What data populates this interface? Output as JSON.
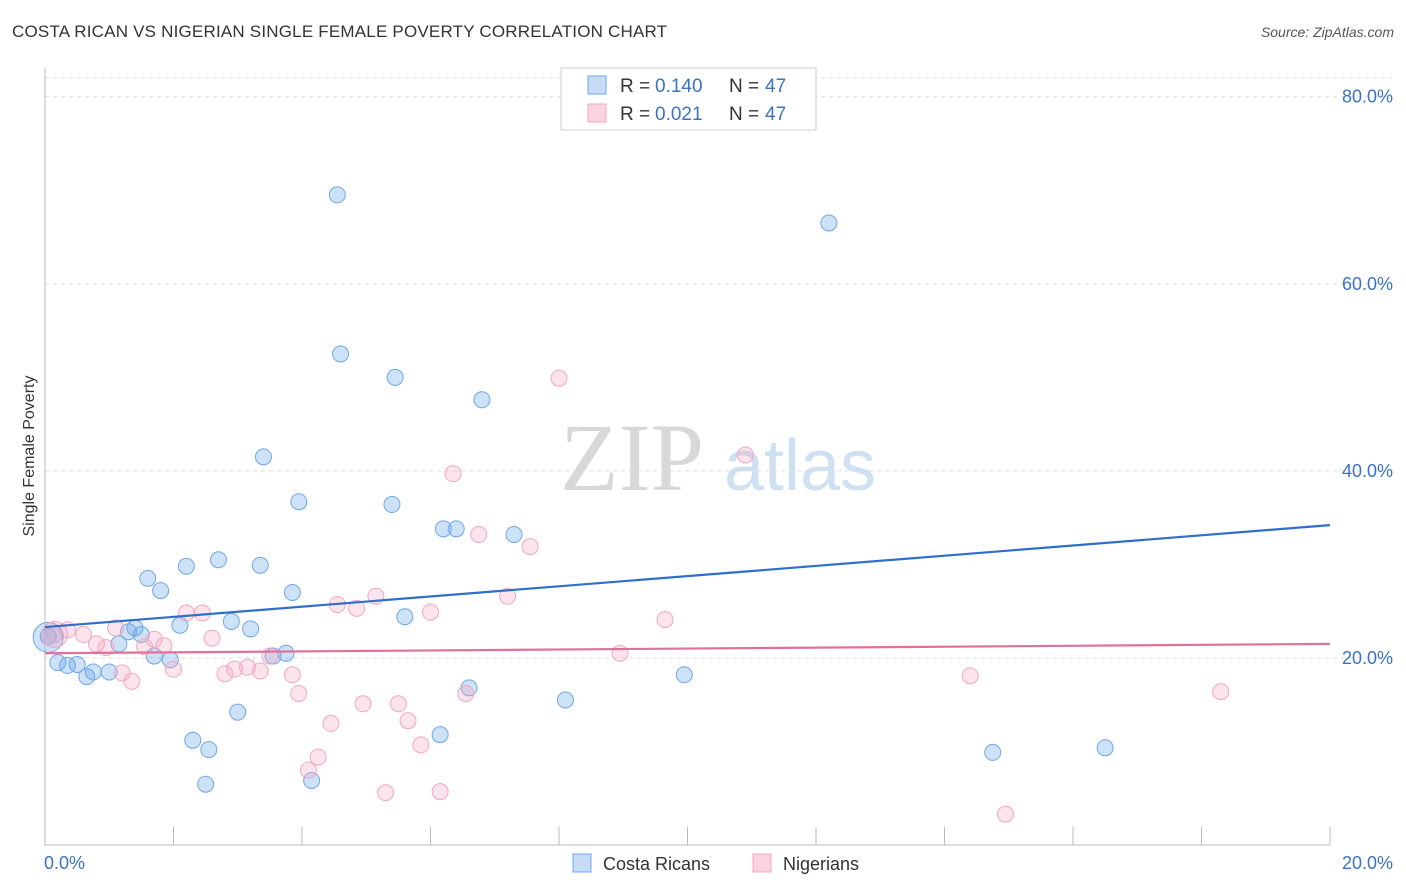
{
  "header": {
    "title": "COSTA RICAN VS NIGERIAN SINGLE FEMALE POVERTY CORRELATION CHART",
    "source": "Source: ZipAtlas.com"
  },
  "colors": {
    "blue": "#6fa8e8",
    "blue_line": "#2e6fcc",
    "pink": "#f4a6c0",
    "pink_line": "#e0719a",
    "tick_label": "#3a73c4",
    "grid": "#dddddd"
  },
  "watermark": {
    "zip": "ZIP",
    "atlas": "atlas"
  },
  "legend_top": [
    {
      "r_label": "R =",
      "r_value": "0.140",
      "n_label": "N =",
      "n_value": "47"
    },
    {
      "r_label": "R =",
      "r_value": "0.021",
      "n_label": "N =",
      "n_value": "47"
    }
  ],
  "chart_data": {
    "type": "scatter",
    "title": "COSTA RICAN VS NIGERIAN SINGLE FEMALE POVERTY CORRELATION CHART",
    "xlabel": "",
    "ylabel": "Single Female Poverty",
    "xlim": [
      0,
      20
    ],
    "ylim": [
      0,
      82
    ],
    "x_tick_labels": [
      "0.0%",
      "20.0%"
    ],
    "y_ticks": [
      20,
      40,
      60,
      80
    ],
    "y_tick_labels": [
      "20.0%",
      "40.0%",
      "60.0%",
      "80.0%"
    ],
    "grid": true,
    "legend": [
      "Costa Ricans",
      "Nigerians"
    ],
    "series": [
      {
        "name": "Costa Ricans",
        "r": 0.14,
        "n": 47,
        "trend": {
          "x": [
            0,
            20
          ],
          "y": [
            23.3,
            34.2
          ]
        },
        "points": [
          [
            0.05,
            22.3
          ],
          [
            0.2,
            19.5
          ],
          [
            0.35,
            19.2
          ],
          [
            0.5,
            19.3
          ],
          [
            0.65,
            18.0
          ],
          [
            0.75,
            18.5
          ],
          [
            1.0,
            18.5
          ],
          [
            1.15,
            21.5
          ],
          [
            1.3,
            22.8
          ],
          [
            1.4,
            23.2
          ],
          [
            1.5,
            22.5
          ],
          [
            1.6,
            28.5
          ],
          [
            1.7,
            20.2
          ],
          [
            1.8,
            27.2
          ],
          [
            1.95,
            19.8
          ],
          [
            2.1,
            23.5
          ],
          [
            2.2,
            29.8
          ],
          [
            2.3,
            11.2
          ],
          [
            2.5,
            6.5
          ],
          [
            2.55,
            10.2
          ],
          [
            2.7,
            30.5
          ],
          [
            2.9,
            23.9
          ],
          [
            3.0,
            14.2
          ],
          [
            3.2,
            23.1
          ],
          [
            3.35,
            29.9
          ],
          [
            3.4,
            41.5
          ],
          [
            3.55,
            20.2
          ],
          [
            3.75,
            20.5
          ],
          [
            3.85,
            27.0
          ],
          [
            3.95,
            36.7
          ],
          [
            4.15,
            6.9
          ],
          [
            4.55,
            69.5
          ],
          [
            4.6,
            52.5
          ],
          [
            5.4,
            36.4
          ],
          [
            5.45,
            50.0
          ],
          [
            5.6,
            24.4
          ],
          [
            6.15,
            11.8
          ],
          [
            6.2,
            33.8
          ],
          [
            6.4,
            33.8
          ],
          [
            6.6,
            16.8
          ],
          [
            6.8,
            47.6
          ],
          [
            7.3,
            33.2
          ],
          [
            8.1,
            15.5
          ],
          [
            9.95,
            18.2
          ],
          [
            12.2,
            66.5
          ],
          [
            14.75,
            9.9
          ],
          [
            16.5,
            10.4
          ]
        ]
      },
      {
        "name": "Nigerians",
        "r": 0.021,
        "n": 47,
        "trend": {
          "x": [
            0,
            20
          ],
          "y": [
            20.5,
            21.5
          ]
        },
        "points": [
          [
            0.15,
            22.5
          ],
          [
            0.35,
            23.0
          ],
          [
            0.6,
            22.5
          ],
          [
            0.8,
            21.5
          ],
          [
            0.95,
            21.1
          ],
          [
            1.1,
            23.2
          ],
          [
            1.2,
            18.4
          ],
          [
            1.35,
            17.5
          ],
          [
            1.55,
            21.2
          ],
          [
            1.7,
            22.0
          ],
          [
            1.85,
            21.3
          ],
          [
            2.0,
            18.8
          ],
          [
            2.2,
            24.8
          ],
          [
            2.45,
            24.8
          ],
          [
            2.6,
            22.1
          ],
          [
            2.8,
            18.3
          ],
          [
            2.95,
            18.8
          ],
          [
            3.15,
            19.0
          ],
          [
            3.35,
            18.6
          ],
          [
            3.5,
            20.2
          ],
          [
            3.85,
            18.2
          ],
          [
            3.95,
            16.2
          ],
          [
            4.1,
            8.0
          ],
          [
            4.25,
            9.4
          ],
          [
            4.45,
            13.0
          ],
          [
            4.55,
            25.7
          ],
          [
            4.85,
            25.3
          ],
          [
            4.95,
            15.1
          ],
          [
            5.15,
            26.6
          ],
          [
            5.3,
            5.6
          ],
          [
            5.5,
            15.1
          ],
          [
            5.65,
            13.3
          ],
          [
            5.85,
            10.7
          ],
          [
            6.0,
            24.9
          ],
          [
            6.15,
            5.7
          ],
          [
            6.35,
            39.7
          ],
          [
            6.55,
            16.2
          ],
          [
            6.75,
            33.2
          ],
          [
            7.2,
            26.6
          ],
          [
            7.55,
            31.9
          ],
          [
            8.0,
            49.9
          ],
          [
            8.95,
            20.5
          ],
          [
            9.65,
            24.1
          ],
          [
            10.9,
            41.7
          ],
          [
            14.4,
            18.1
          ],
          [
            14.95,
            3.3
          ],
          [
            18.3,
            16.4
          ]
        ]
      }
    ]
  }
}
